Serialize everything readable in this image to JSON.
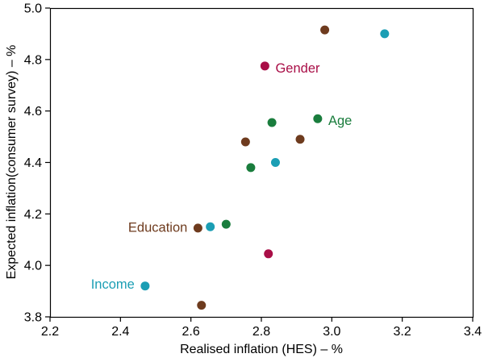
{
  "chart_data": {
    "type": "scatter",
    "title": "",
    "xlabel": "Realised inflation (HES) – %",
    "ylabel": "Expected inflation(consumer survey) – %",
    "xlim": [
      2.2,
      3.4
    ],
    "ylim": [
      3.8,
      5.0
    ],
    "xticks": [
      2.2,
      2.4,
      2.6,
      2.8,
      3.0,
      3.2,
      3.4
    ],
    "yticks": [
      3.8,
      4.0,
      4.2,
      4.4,
      4.6,
      4.8,
      5.0
    ],
    "grid": false,
    "legend_position": "inline-labels",
    "frame_color": "#000000",
    "background_color": "#ffffff",
    "series": [
      {
        "name": "Gender",
        "color": "#A90E47",
        "points": [
          [
            2.81,
            4.775
          ],
          [
            2.82,
            4.045
          ]
        ],
        "label": {
          "text": "Gender",
          "x": 2.84,
          "y": 4.75,
          "anchor": "start"
        }
      },
      {
        "name": "Age",
        "color": "#1A7D3D",
        "points": [
          [
            2.83,
            4.555
          ],
          [
            2.96,
            4.57
          ],
          [
            2.77,
            4.38
          ],
          [
            2.7,
            4.16
          ]
        ],
        "label": {
          "text": "Age",
          "x": 2.99,
          "y": 4.545,
          "anchor": "start"
        }
      },
      {
        "name": "Education",
        "color": "#6E3B1E",
        "points": [
          [
            2.98,
            4.915
          ],
          [
            2.91,
            4.49
          ],
          [
            2.755,
            4.48
          ],
          [
            2.62,
            4.145
          ],
          [
            2.63,
            3.845
          ]
        ],
        "label": {
          "text": "Education",
          "x": 2.59,
          "y": 4.13,
          "anchor": "end"
        }
      },
      {
        "name": "Income",
        "color": "#1B9EB4",
        "points": [
          [
            3.15,
            4.9
          ],
          [
            2.84,
            4.4
          ],
          [
            2.655,
            4.15
          ],
          [
            2.47,
            3.92
          ]
        ],
        "label": {
          "text": "Income",
          "x": 2.44,
          "y": 3.91,
          "anchor": "end"
        }
      }
    ]
  }
}
